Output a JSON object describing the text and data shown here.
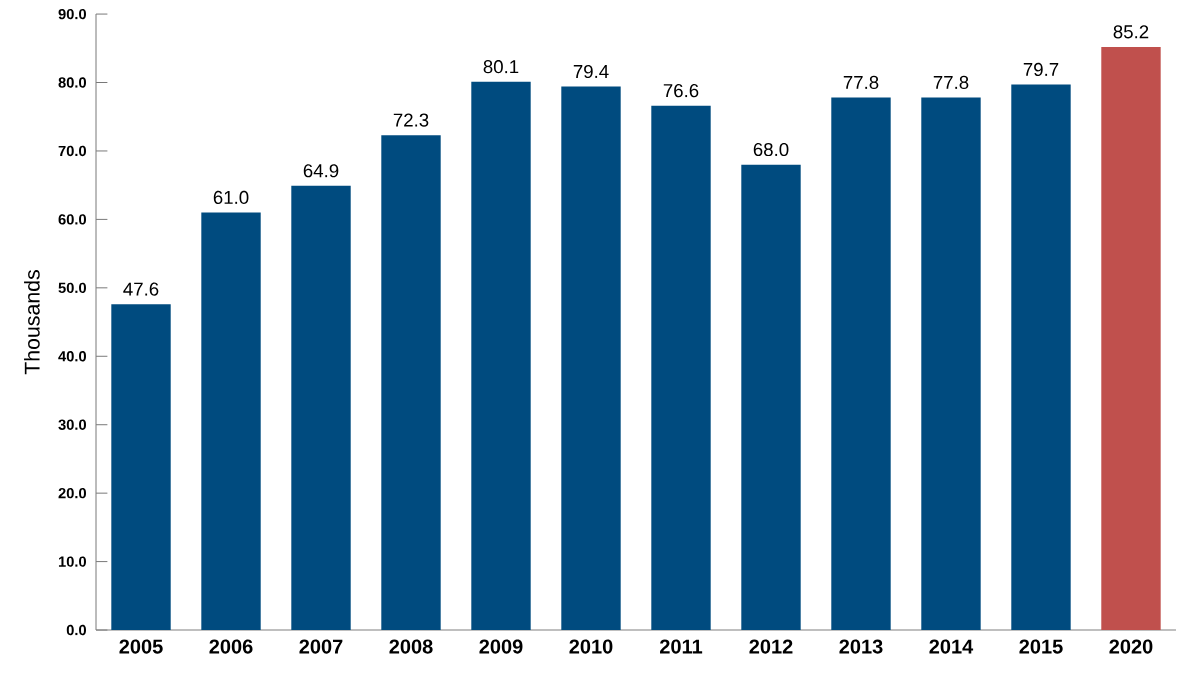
{
  "chart_data": {
    "type": "bar",
    "ylabel": "Thousands",
    "categories": [
      "2005",
      "2006",
      "2007",
      "2008",
      "2009",
      "2010",
      "2011",
      "2012",
      "2013",
      "2014",
      "2015",
      "2020"
    ],
    "values": [
      47.6,
      61.0,
      64.9,
      72.3,
      80.1,
      79.4,
      76.6,
      68.0,
      77.8,
      77.8,
      79.7,
      85.2
    ],
    "value_labels": [
      "47.6",
      "61.0",
      "64.9",
      "72.3",
      "80.1",
      "79.4",
      "76.6",
      "68.0",
      "77.8",
      "77.8",
      "79.7",
      "85.2"
    ],
    "colors": [
      "#004b7f",
      "#004b7f",
      "#004b7f",
      "#004b7f",
      "#004b7f",
      "#004b7f",
      "#004b7f",
      "#004b7f",
      "#004b7f",
      "#004b7f",
      "#004b7f",
      "#c0504d"
    ],
    "ylim": [
      0,
      90
    ],
    "yticks": [
      {
        "value": 0,
        "label": "0.0"
      },
      {
        "value": 10,
        "label": "10.0"
      },
      {
        "value": 20,
        "label": "20.0"
      },
      {
        "value": 30,
        "label": "30.0"
      },
      {
        "value": 40,
        "label": "40.0"
      },
      {
        "value": 50,
        "label": "50.0"
      },
      {
        "value": 60,
        "label": "60.0"
      },
      {
        "value": 70,
        "label": "70.0"
      },
      {
        "value": 80,
        "label": "80.0"
      },
      {
        "value": 90,
        "label": "90.0"
      }
    ]
  }
}
